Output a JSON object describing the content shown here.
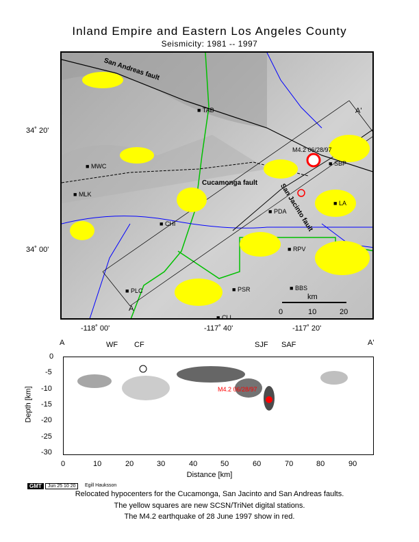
{
  "title": "Inland Empire and Eastern Los Angeles County",
  "subtitle": "Seismicity: 1981  --  1997",
  "map": {
    "lat_labels": [
      "34˚ 20'",
      "34˚ 00'"
    ],
    "lon_labels": [
      "-118˚ 00'",
      "-117˚ 40'",
      "-117˚ 20'"
    ],
    "fault_labels": [
      "San Andreas fault",
      "Cucamonga fault",
      "San Jacinto fault"
    ],
    "section_labels": [
      "A",
      "A'"
    ],
    "event_label": "M4.2 06/28/97",
    "stations": [
      "TAB",
      "SBP",
      "MWC",
      "MLK",
      "CHI",
      "PLC",
      "RPV",
      "PSR",
      "BBS",
      "LA",
      "PDA",
      "CLL"
    ],
    "scale": {
      "unit": "km",
      "ticks": [
        "0",
        "10",
        "20"
      ]
    }
  },
  "section": {
    "ends": [
      "A",
      "A'"
    ],
    "fault_markers": [
      "WF",
      "CF",
      "SJF",
      "SAF"
    ],
    "event_label": "M4.2 06/28/97",
    "ylabel": "Depth [km]",
    "xlabel": "Distance [km]",
    "y_ticks": [
      "0",
      "-5",
      "-10",
      "-15",
      "-20",
      "-25",
      "-30"
    ],
    "x_ticks": [
      "0",
      "10",
      "20",
      "30",
      "40",
      "50",
      "60",
      "70",
      "80",
      "90"
    ]
  },
  "footer": {
    "gmt": "GMT",
    "date": "Jun 25 10 20",
    "author": "Egill Hauksson",
    "caption": [
      "Relocated hypocenters for the Cucamonga, San Jacinto and San Andreas faults.",
      "The yellow squares are new SCSN/TriNet digital stations.",
      "The M4.2 earthquake of 28 June 1997 show in red."
    ]
  },
  "colors": {
    "seismicity": "#ffff00",
    "event": "#ff0000",
    "water": "#0000ff",
    "boundary": "#00c000"
  }
}
